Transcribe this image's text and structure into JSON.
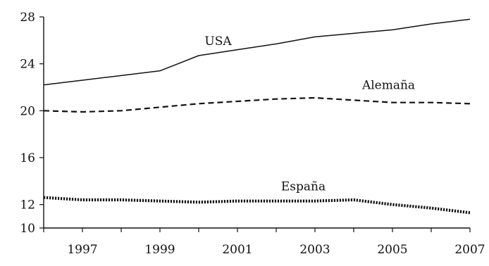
{
  "chart_data": {
    "type": "line",
    "title": "",
    "xlabel": "",
    "ylabel": "",
    "xlim": [
      1996,
      2007
    ],
    "ylim": [
      10,
      28
    ],
    "grid": false,
    "legend": "none",
    "x_ticks": [
      1997,
      1999,
      2001,
      2003,
      2005,
      2007
    ],
    "y_ticks": [
      10,
      12,
      16,
      20,
      24,
      28
    ],
    "x_tick_labels": [
      "1997",
      "1999",
      "2001",
      "2003",
      "2005",
      "2007"
    ],
    "y_tick_labels": [
      "10",
      "12",
      "16",
      "20",
      "24",
      "28"
    ],
    "x": [
      1996,
      1997,
      1998,
      1999,
      2000,
      2001,
      2002,
      2003,
      2004,
      2005,
      2006,
      2007
    ],
    "series": [
      {
        "name": "USA",
        "style": "solid",
        "color": "#111111",
        "values": [
          22.2,
          22.6,
          23.0,
          23.4,
          24.7,
          25.2,
          25.7,
          26.3,
          26.6,
          26.9,
          27.4,
          27.8
        ]
      },
      {
        "name": "Alemaña",
        "style": "dashed",
        "color": "#111111",
        "values": [
          20.0,
          19.9,
          20.0,
          20.3,
          20.6,
          20.8,
          21.0,
          21.1,
          20.9,
          20.7,
          20.7,
          20.6
        ]
      },
      {
        "name": "España",
        "style": "dotted",
        "color": "#111111",
        "values": [
          12.6,
          12.4,
          12.4,
          12.3,
          12.2,
          12.3,
          12.3,
          12.3,
          12.4,
          12.0,
          11.7,
          11.3
        ]
      }
    ]
  }
}
